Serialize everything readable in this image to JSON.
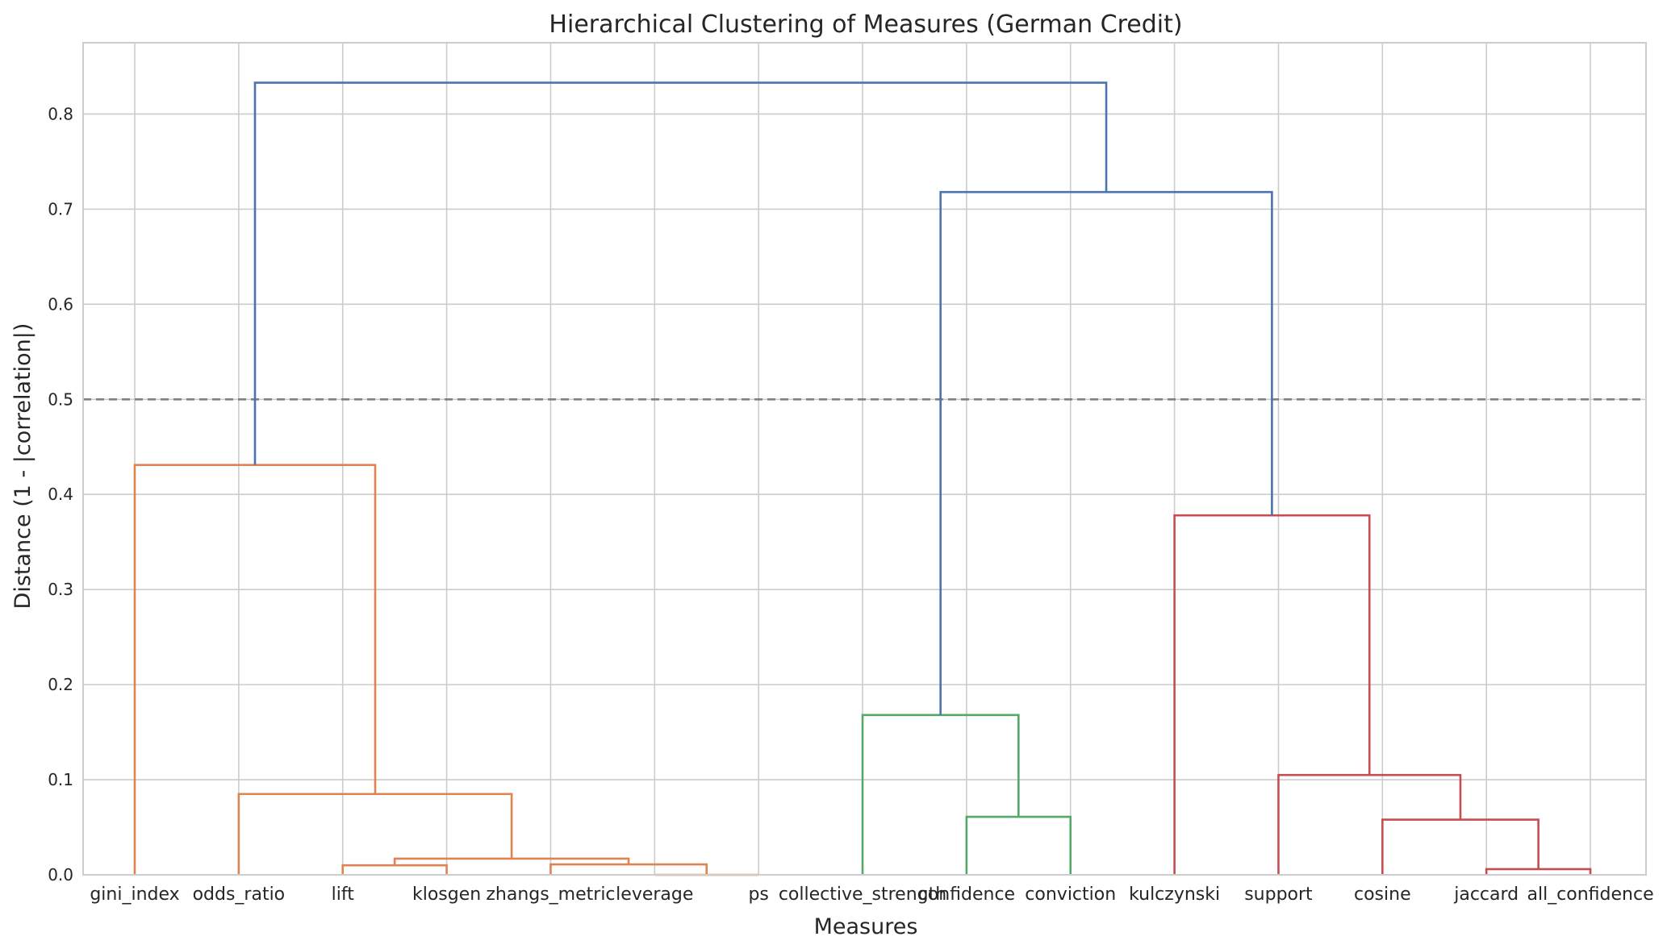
{
  "chart_data": {
    "type": "dendrogram",
    "title": "Hierarchical Clustering of Measures (German Credit)",
    "xlabel": "Measures",
    "ylabel": "Distance (1 - |correlation|)",
    "ylim": [
      0,
      0.875
    ],
    "yticks": [
      "0.0",
      "0.1",
      "0.2",
      "0.3",
      "0.4",
      "0.5",
      "0.6",
      "0.7",
      "0.8"
    ],
    "ytick_values": [
      0,
      0.1,
      0.2,
      0.3,
      0.4,
      0.5,
      0.6,
      0.7,
      0.8
    ],
    "grid": true,
    "threshold": 0.5,
    "leaves": [
      "gini_index",
      "odds_ratio",
      "lift",
      "klosgen",
      "zhangs_metric",
      "leverage",
      "ps",
      "collective_strength",
      "confidence",
      "conviction",
      "kulczynski",
      "support",
      "cosine",
      "jaccard",
      "all_confidence"
    ],
    "cluster_colors": {
      "orange": "#dd8452",
      "green": "#55a868",
      "red": "#c44e52",
      "above_threshold": "#4c72b0",
      "threshold_line": "#808080"
    },
    "links": [
      {
        "left": 5,
        "right": 6,
        "left_height": 0,
        "right_height": 0,
        "height": 0.0,
        "color": "orange"
      },
      {
        "left": 2,
        "right": 3,
        "left_height": 0,
        "right_height": 0,
        "height": 0.01,
        "color": "orange"
      },
      {
        "left": 4,
        "right": 5.5,
        "left_height": 0,
        "right_height": 0.0,
        "height": 0.011,
        "color": "orange"
      },
      {
        "left": 2.5,
        "right": 4.75,
        "left_height": 0.01,
        "right_height": 0.011,
        "height": 0.017,
        "color": "orange"
      },
      {
        "left": 1,
        "right": 3.625,
        "left_height": 0,
        "right_height": 0.017,
        "height": 0.085,
        "color": "orange"
      },
      {
        "left": 0,
        "right": 2.3125,
        "left_height": 0,
        "right_height": 0.085,
        "height": 0.431,
        "color": "orange"
      },
      {
        "left": 8,
        "right": 9,
        "left_height": 0,
        "right_height": 0,
        "height": 0.061,
        "color": "green"
      },
      {
        "left": 7,
        "right": 8.5,
        "left_height": 0,
        "right_height": 0.061,
        "height": 0.168,
        "color": "green"
      },
      {
        "left": 13,
        "right": 14,
        "left_height": 0,
        "right_height": 0,
        "height": 0.006,
        "color": "red"
      },
      {
        "left": 12,
        "right": 13.5,
        "left_height": 0,
        "right_height": 0.006,
        "height": 0.058,
        "color": "red"
      },
      {
        "left": 11,
        "right": 12.75,
        "left_height": 0,
        "right_height": 0.058,
        "height": 0.105,
        "color": "red"
      },
      {
        "left": 10,
        "right": 11.875,
        "left_height": 0,
        "right_height": 0.105,
        "height": 0.378,
        "color": "red"
      },
      {
        "left": 7.75,
        "right": 10.9375,
        "left_height": 0.168,
        "right_height": 0.378,
        "height": 0.718,
        "color": "above_threshold"
      },
      {
        "left": 1.15625,
        "right": 9.34375,
        "left_height": 0.431,
        "right_height": 0.718,
        "height": 0.833,
        "color": "above_threshold"
      }
    ]
  }
}
